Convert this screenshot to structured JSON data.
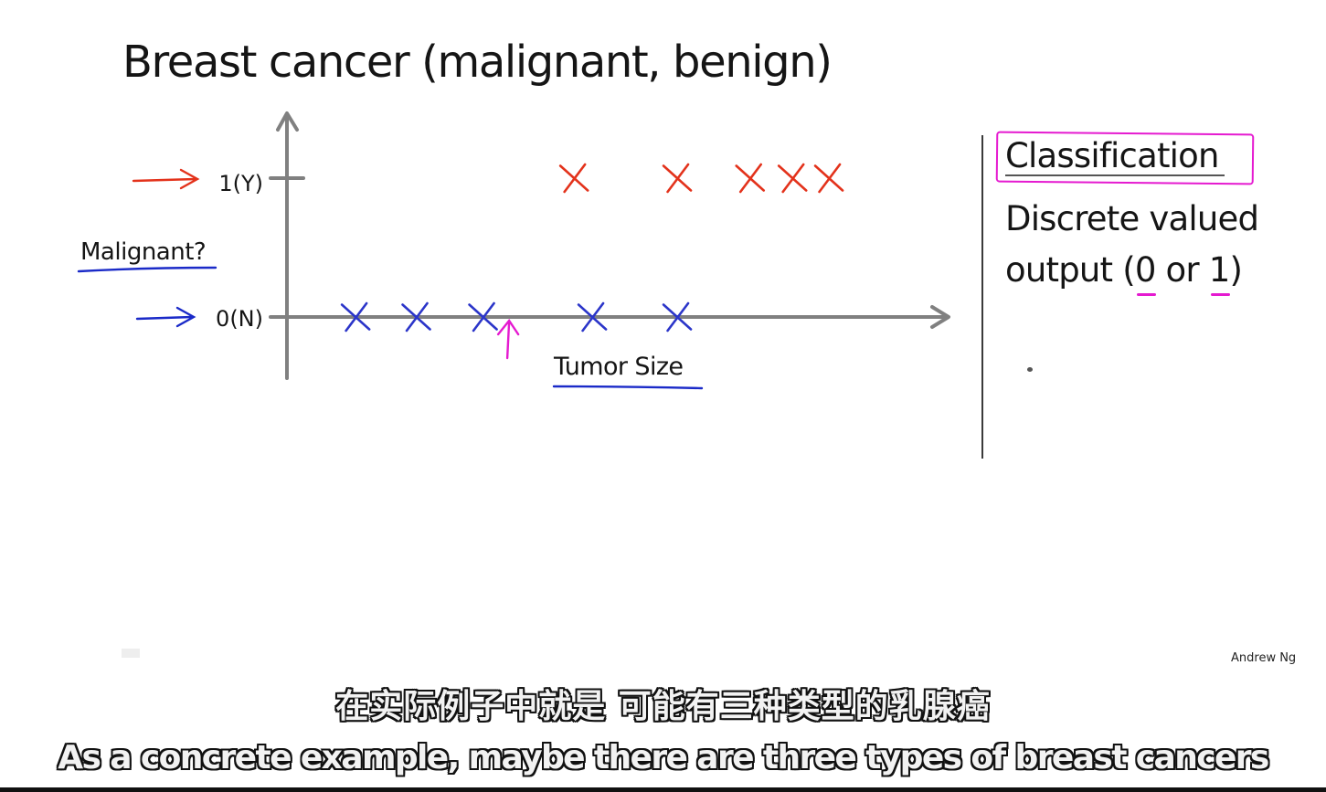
{
  "slide": {
    "title": "Breast cancer (malignant, benign)",
    "author": "Andrew Ng"
  },
  "chart_data": {
    "type": "scatter",
    "title": "",
    "xlabel": "Tumor Size",
    "ylabel": "Malignant?",
    "y_ticks": [
      "0(N)",
      "1(Y)"
    ],
    "ylim": [
      0,
      1
    ],
    "xlim": [
      0,
      10
    ],
    "grid": false,
    "legend": "none",
    "series": [
      {
        "color": "#e3321b",
        "x": [
          4.4,
          6.1,
          7.3,
          8.0,
          8.6
        ],
        "y": [
          1,
          1,
          1,
          1,
          1
        ]
      },
      {
        "color": "#2b35c9",
        "x": [
          0.8,
          1.8,
          2.9,
          4.7,
          6.1
        ],
        "y": [
          0,
          0,
          0,
          0,
          0
        ]
      }
    ],
    "threshold_arrow_x": 3.3
  },
  "panel": {
    "heading": "Classification",
    "line1": "Discrete valued",
    "line2_before": "output (",
    "line2_zero": "0",
    "line2_middle": " or ",
    "line2_one": "1",
    "line2_after": ")"
  },
  "colors": {
    "pink": "#e51ad0",
    "underline_blue": "#1a2ac8",
    "axis": "#808080"
  },
  "subtitles": {
    "zh": "在实际例子中就是 可能有三种类型的乳腺癌",
    "en": "As a concrete example, maybe there are three types of breast cancers"
  }
}
